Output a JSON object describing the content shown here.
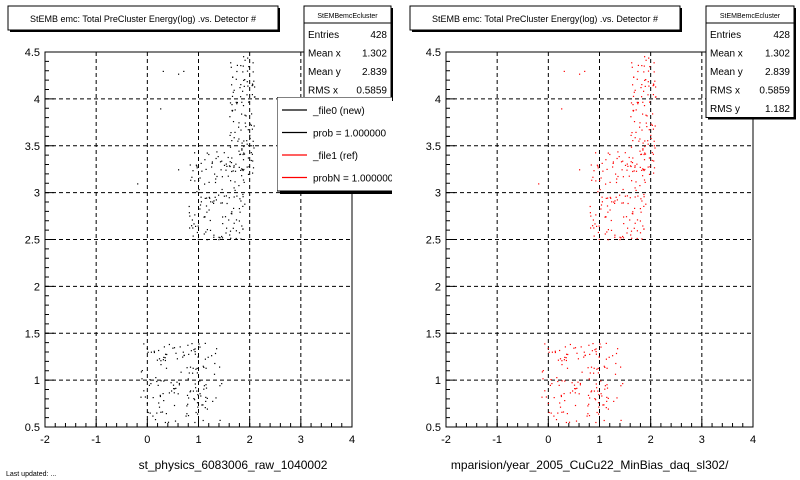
{
  "colors": {
    "new": "#000000",
    "ref": "#ff0000",
    "grid": "#000000",
    "legend_shadow": "#000000"
  },
  "footer_text": "Last updated: ...",
  "chart_data": [
    {
      "type": "scatter",
      "title": "StEMB emc: Total PreCluster Energy(log) .vs. Detector #",
      "xlabel": "st_physics_6083006_raw_1040002",
      "ylabel": "",
      "xlim": [
        -2,
        4
      ],
      "ylim": [
        0.5,
        4.5
      ],
      "x_ticks": [
        "-2",
        "-1",
        "0",
        "1",
        "2",
        "3",
        "4"
      ],
      "y_ticks": [
        "0.5",
        "1",
        "1.5",
        "2",
        "2.5",
        "3",
        "3.5",
        "4",
        "4.5"
      ],
      "grid": true,
      "marker_color": "#000000",
      "stats": {
        "name": "StEMBemcEcluster",
        "rows": [
          {
            "label": "Entries",
            "value": "428"
          },
          {
            "label": "Mean x",
            "value": "1.302"
          },
          {
            "label": "Mean y",
            "value": "2.839"
          },
          {
            "label": "RMS x",
            "value": "0.5859"
          }
        ]
      },
      "legend": {
        "placement": "top-right",
        "entries": [
          {
            "label": "_file0 (new)",
            "color": "#000000"
          },
          {
            "label": "prob = 1.000000",
            "color": "#000000"
          },
          {
            "label": "_file1 (ref)",
            "color": "#ff0000"
          },
          {
            "label": "probN = 1.000000",
            "color": "#ff0000"
          }
        ]
      },
      "clusters": [
        {
          "x": [
            -0.15,
            1.45
          ],
          "y": [
            0.55,
            1.4
          ],
          "n": 150
        },
        {
          "x": [
            0.8,
            1.9
          ],
          "y": [
            2.5,
            3.45
          ],
          "n": 150
        },
        {
          "x": [
            1.6,
            2.1
          ],
          "y": [
            3.2,
            4.5
          ],
          "n": 110
        }
      ],
      "outliers": [
        [
          0.3,
          4.3
        ],
        [
          0.6,
          4.27
        ],
        [
          0.7,
          4.3
        ],
        [
          0.25,
          3.9
        ],
        [
          -0.2,
          3.1
        ],
        [
          0.6,
          3.25
        ]
      ]
    },
    {
      "type": "scatter",
      "title": "StEMB emc: Total PreCluster Energy(log) .vs. Detector #",
      "xlabel": "mparision/year_2005_CuCu22_MinBias_daq_sl302/",
      "ylabel": "",
      "xlim": [
        -2,
        4
      ],
      "ylim": [
        0.5,
        4.5
      ],
      "x_ticks": [
        "-2",
        "-1",
        "0",
        "1",
        "2",
        "3",
        "4"
      ],
      "y_ticks": [
        "0.5",
        "1",
        "1.5",
        "2",
        "2.5",
        "3",
        "3.5",
        "4",
        "4.5"
      ],
      "grid": true,
      "marker_color": "#ff0000",
      "stats": {
        "name": "StEMBemcEcluster",
        "rows": [
          {
            "label": "Entries",
            "value": "428"
          },
          {
            "label": "Mean x",
            "value": "1.302"
          },
          {
            "label": "Mean y",
            "value": "2.839"
          },
          {
            "label": "RMS x",
            "value": "0.5859"
          },
          {
            "label": "RMS y",
            "value": "1.182"
          }
        ]
      },
      "clusters": [
        {
          "x": [
            -0.15,
            1.45
          ],
          "y": [
            0.55,
            1.4
          ],
          "n": 150
        },
        {
          "x": [
            0.8,
            1.9
          ],
          "y": [
            2.5,
            3.45
          ],
          "n": 150
        },
        {
          "x": [
            1.6,
            2.1
          ],
          "y": [
            3.2,
            4.5
          ],
          "n": 110
        }
      ],
      "outliers": [
        [
          0.3,
          4.3
        ],
        [
          0.6,
          4.27
        ],
        [
          0.7,
          4.3
        ],
        [
          0.25,
          3.9
        ],
        [
          -0.2,
          3.1
        ],
        [
          0.6,
          3.25
        ]
      ]
    }
  ]
}
